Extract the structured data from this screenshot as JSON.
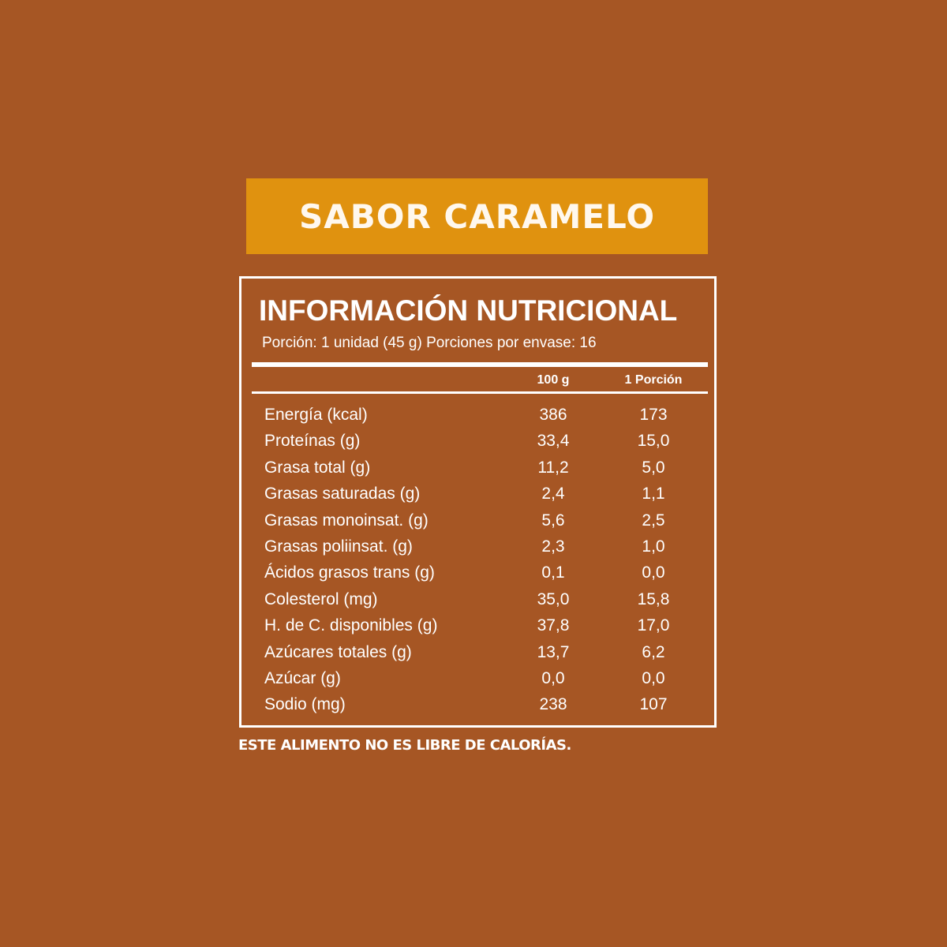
{
  "colors": {
    "background": "#A65624",
    "banner": "#E0920F",
    "text": "#FFFFFF"
  },
  "banner": {
    "label": "SABOR CARAMELO"
  },
  "label": {
    "title": "INFORMACIÓN NUTRICIONAL",
    "portion": "Porción: 1 unidad (45 g) Porciones por envase: 16",
    "columns": [
      "100 g",
      "1 Porción"
    ],
    "rows": [
      {
        "name": "Energía (kcal)",
        "per100": "386",
        "perPortion": "173"
      },
      {
        "name": "Proteínas (g)",
        "per100": "33,4",
        "perPortion": "15,0"
      },
      {
        "name": "Grasa total (g)",
        "per100": "11,2",
        "perPortion": "5,0"
      },
      {
        "name": "Grasas saturadas (g)",
        "per100": "2,4",
        "perPortion": "1,1"
      },
      {
        "name": "Grasas monoinsat. (g)",
        "per100": "5,6",
        "perPortion": "2,5"
      },
      {
        "name": "Grasas poliinsat. (g)",
        "per100": "2,3",
        "perPortion": "1,0"
      },
      {
        "name": "Ácidos grasos trans (g)",
        "per100": "0,1",
        "perPortion": "0,0"
      },
      {
        "name": "Colesterol (mg)",
        "per100": "35,0",
        "perPortion": "15,8"
      },
      {
        "name": "H. de C. disponibles (g)",
        "per100": "37,8",
        "perPortion": "17,0"
      },
      {
        "name": "Azúcares totales (g)",
        "per100": "13,7",
        "perPortion": "6,2"
      },
      {
        "name": "Azúcar (g)",
        "per100": "0,0",
        "perPortion": "0,0"
      },
      {
        "name": "Sodio (mg)",
        "per100": "238",
        "perPortion": "107"
      }
    ]
  },
  "footer": {
    "text": "ESTE ALIMENTO NO ES LIBRE DE CALORÍAS."
  }
}
